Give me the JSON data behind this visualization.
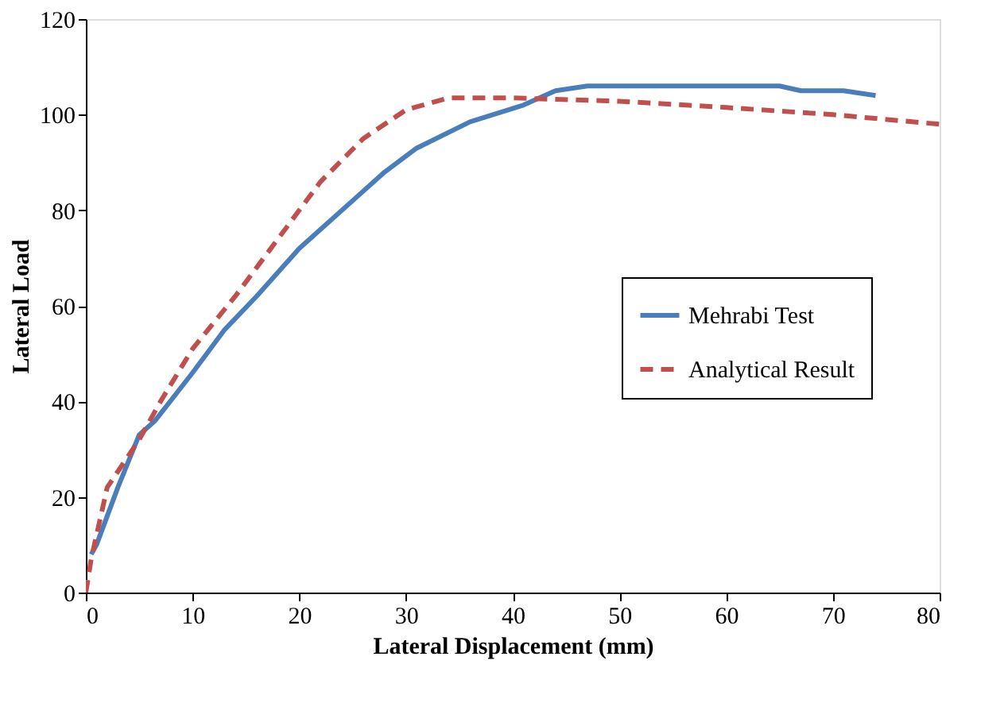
{
  "chart_data": {
    "type": "line",
    "xlabel": "Lateral Displacement (mm)",
    "ylabel": "Lateral Load",
    "xlim": [
      0,
      80
    ],
    "xticks": [
      0,
      10,
      20,
      30,
      40,
      50,
      60,
      70,
      80
    ],
    "ylim": [
      0,
      120
    ],
    "yticks": [
      0,
      20,
      40,
      60,
      80,
      100,
      120
    ],
    "grid": false,
    "legend": "right",
    "marker": "none",
    "series": [
      {
        "name": "Mehrabi Test",
        "color": "#4a7ebb",
        "line_style": "solid",
        "x": [
          0.5,
          1,
          3,
          5,
          6.5,
          10,
          13,
          16,
          20,
          25,
          28,
          31,
          36,
          41,
          44,
          47,
          55,
          65,
          67,
          71,
          74
        ],
        "values": [
          8,
          10,
          22,
          33,
          36,
          46,
          55,
          62,
          72,
          82,
          88,
          93,
          98.5,
          102,
          105,
          106,
          106,
          106,
          105,
          105,
          104
        ]
      },
      {
        "name": "Analytical Result",
        "color": "#c0504d",
        "line_style": "dashed",
        "x": [
          0,
          0.5,
          2,
          5,
          7,
          10,
          14,
          18,
          22,
          26,
          30,
          34,
          40,
          50,
          60,
          70,
          80
        ],
        "values": [
          0,
          7,
          22,
          32,
          40,
          51,
          62,
          74,
          86,
          95,
          101,
          103.5,
          103.5,
          102.8,
          101.5,
          100,
          98
        ]
      }
    ]
  }
}
